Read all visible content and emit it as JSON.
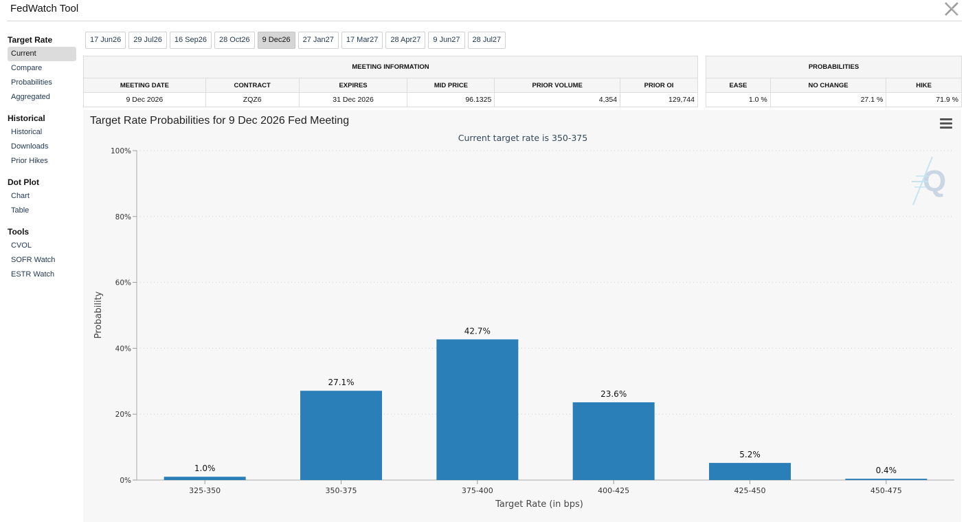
{
  "app": {
    "title": "FedWatch Tool"
  },
  "sidebar": {
    "groups": [
      {
        "title": "Target Rate",
        "items": [
          {
            "label": "Current",
            "active": true
          },
          {
            "label": "Compare"
          },
          {
            "label": "Probabilities"
          },
          {
            "label": "Aggregated"
          }
        ]
      },
      {
        "title": "Historical",
        "items": [
          {
            "label": "Historical"
          },
          {
            "label": "Downloads"
          },
          {
            "label": "Prior Hikes"
          }
        ]
      },
      {
        "title": "Dot Plot",
        "items": [
          {
            "label": "Chart"
          },
          {
            "label": "Table"
          }
        ]
      },
      {
        "title": "Tools",
        "items": [
          {
            "label": "CVOL"
          },
          {
            "label": "SOFR Watch"
          },
          {
            "label": "ESTR Watch"
          }
        ]
      }
    ]
  },
  "tabs": [
    {
      "label": "17 Jun26"
    },
    {
      "label": "29 Jul26"
    },
    {
      "label": "16 Sep26"
    },
    {
      "label": "28 Oct26"
    },
    {
      "label": "9 Dec26",
      "active": true
    },
    {
      "label": "27 Jan27"
    },
    {
      "label": "17 Mar27"
    },
    {
      "label": "28 Apr27"
    },
    {
      "label": "9 Jun27"
    },
    {
      "label": "28 Jul27"
    }
  ],
  "meeting_info": {
    "header": "MEETING INFORMATION",
    "columns": [
      "MEETING DATE",
      "CONTRACT",
      "EXPIRES",
      "MID PRICE",
      "PRIOR VOLUME",
      "PRIOR OI"
    ],
    "row": [
      "9 Dec 2026",
      "ZQZ6",
      "31 Dec 2026",
      "96.1325",
      "4,354",
      "129,744"
    ]
  },
  "probabilities": {
    "header": "PROBABILITIES",
    "columns": [
      "EASE",
      "NO CHANGE",
      "HIKE"
    ],
    "row": [
      "1.0 %",
      "27.1 %",
      "71.9 %"
    ]
  },
  "chart_panel": {
    "title": "Target Rate Probabilities for 9 Dec 2026 Fed Meeting",
    "subtitle": "Current target rate is 350-375",
    "bar_color": "#2a7fb8",
    "grid_color": "#cfcfcf",
    "watermark_icon": "quikstrike-q-logo",
    "menu_icon": "hamburger-menu-icon"
  },
  "chart_data": {
    "type": "bar",
    "title": "Target Rate Probabilities for 9 Dec 2026 Fed Meeting",
    "subtitle": "Current target rate is 350-375",
    "xlabel": "Target Rate (in bps)",
    "ylabel": "Probability",
    "categories": [
      "325-350",
      "350-375",
      "375-400",
      "400-425",
      "425-450",
      "450-475"
    ],
    "values": [
      1.0,
      27.1,
      42.7,
      23.6,
      5.2,
      0.4
    ],
    "value_labels": [
      "1.0%",
      "27.1%",
      "42.7%",
      "23.6%",
      "5.2%",
      "0.4%"
    ],
    "ylim": [
      0,
      100
    ],
    "yticks": [
      "0%",
      "20%",
      "40%",
      "60%",
      "80%",
      "100%"
    ],
    "ytick_values": [
      0,
      20,
      40,
      60,
      80,
      100
    ],
    "grid": true,
    "grid_style": "dotted",
    "legend": false
  }
}
